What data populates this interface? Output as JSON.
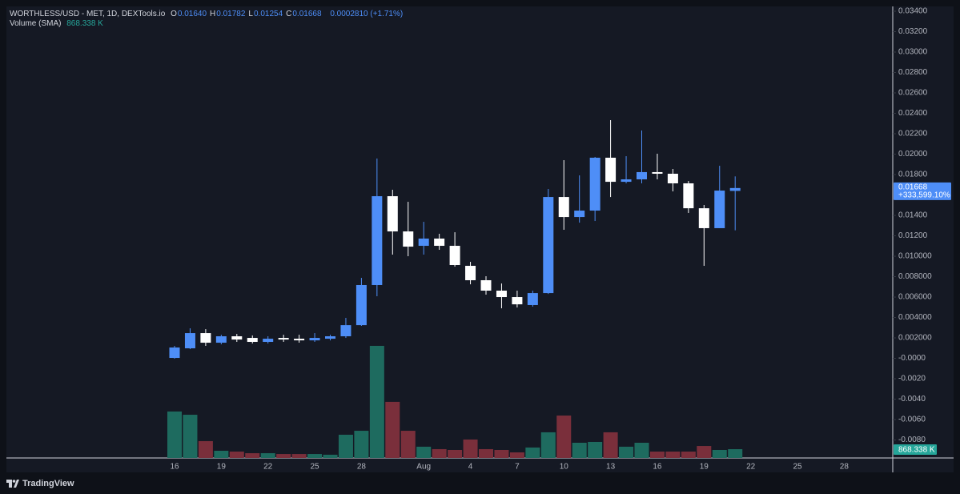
{
  "chart_data": {
    "type": "candlestick",
    "header": {
      "title": "WORTHLESS/USD - MET, 1D, DEXTools.io",
      "legend": [
        {
          "label": "O",
          "value": "0.01640"
        },
        {
          "label": "H",
          "value": "0.01782"
        },
        {
          "label": "L",
          "value": "0.01254"
        },
        {
          "label": "C",
          "value": "0.01668"
        }
      ],
      "change": "0.0002810 (+1.71%)",
      "volume_title": "Volume (SMA)",
      "volume_value": "868.338 K",
      "price_change": "+333,599.10%",
      "brand": "TradingView"
    },
    "categories": [
      "16",
      null,
      null,
      "19",
      null,
      null,
      "22",
      null,
      null,
      "25",
      null,
      null,
      "28",
      null,
      null,
      null,
      "Aug",
      null,
      null,
      "4",
      null,
      null,
      "7",
      null,
      null,
      "10",
      null,
      null,
      "13",
      null,
      null,
      "16",
      null,
      null,
      "19",
      null,
      null,
      "22",
      null,
      null,
      "25",
      null,
      null,
      "28"
    ],
    "open": [
      4e-05,
      0.00098,
      0.00247,
      0.00153,
      0.00216,
      0.002,
      0.00161,
      0.002,
      0.00192,
      0.00176,
      0.00192,
      0.00216,
      0.00325,
      0.00718,
      0.01588,
      0.01243,
      0.01102,
      0.01173,
      0.01102,
      0.00906,
      0.00765,
      0.00663,
      0.006,
      0.00522,
      0.00639,
      0.0158,
      0.01384,
      0.01447,
      0.01965,
      0.01729,
      0.01753,
      0.01824,
      0.01808,
      0.01714,
      0.0147,
      0.01275,
      0.0164,
      null,
      null,
      null,
      null,
      null,
      null,
      null
    ],
    "high": [
      0.00122,
      0.00294,
      0.00286,
      0.00231,
      0.00239,
      0.00224,
      0.00216,
      0.00231,
      0.00231,
      0.00247,
      0.00231,
      0.00396,
      0.00788,
      0.01957,
      0.01651,
      0.01533,
      0.01337,
      0.0122,
      0.01235,
      0.00945,
      0.00804,
      0.00733,
      0.00663,
      0.00663,
      0.01659,
      0.01941,
      0.01792,
      0.01973,
      0.02333,
      0.0198,
      0.02231,
      0.02004,
      0.01855,
      0.01737,
      0.01502,
      0.01886,
      0.01782,
      null,
      null,
      null,
      null,
      null,
      null,
      null
    ],
    "low": [
      -4e-05,
      0.0009,
      0.00122,
      0.00137,
      0.00161,
      0.00145,
      0.00145,
      0.00161,
      0.00153,
      0.00161,
      0.00176,
      0.002,
      0.00318,
      0.00608,
      0.01016,
      0.01,
      0.01016,
      0.01063,
      0.00898,
      0.00725,
      0.00624,
      0.0049,
      0.00498,
      0.00506,
      0.00631,
      0.01259,
      0.01329,
      0.01345,
      0.0158,
      0.01714,
      0.01714,
      0.01753,
      0.01635,
      0.01424,
      0.00906,
      0.01275,
      0.01254,
      null,
      null,
      null,
      null,
      null,
      null,
      null
    ],
    "close": [
      0.00106,
      0.00247,
      0.00153,
      0.00216,
      0.00184,
      0.00161,
      0.00192,
      0.00184,
      0.00176,
      0.002,
      0.00216,
      0.00325,
      0.00718,
      0.01588,
      0.01243,
      0.01094,
      0.01173,
      0.01102,
      0.00914,
      0.00765,
      0.00663,
      0.006,
      0.00529,
      0.00639,
      0.0158,
      0.01384,
      0.01447,
      0.01965,
      0.01729,
      0.01753,
      0.01824,
      0.01808,
      0.01714,
      0.0147,
      0.01275,
      0.01643,
      0.01668,
      null,
      null,
      null,
      null,
      null,
      null,
      null
    ],
    "volume": [
      4580000,
      4260000,
      1660000,
      710000,
      630000,
      470000,
      470000,
      390000,
      390000,
      390000,
      320000,
      2290000,
      2680000,
      11050000,
      5530000,
      2680000,
      1110000,
      870000,
      790000,
      1820000,
      870000,
      790000,
      550000,
      1030000,
      2530000,
      4180000,
      1500000,
      1580000,
      2530000,
      1110000,
      1500000,
      630000,
      630000,
      630000,
      1180000,
      790000,
      868338,
      null,
      null,
      null,
      null,
      null,
      null,
      null
    ],
    "up_color": "#4e8ef7",
    "down_color": "#ffffff",
    "volume_up_color": "#1e6b5f",
    "volume_down_color": "#7a2f3b",
    "ylim": [
      -0.00976,
      0.03447
    ],
    "volume_ylim": [
      0,
      44500000
    ],
    "yticks": [
      {
        "value": 0.034,
        "label": "0.03400"
      },
      {
        "value": 0.032,
        "label": "0.03200"
      },
      {
        "value": 0.03,
        "label": "0.03000"
      },
      {
        "value": 0.028,
        "label": "0.02800"
      },
      {
        "value": 0.026,
        "label": "0.02600"
      },
      {
        "value": 0.024,
        "label": "0.02400"
      },
      {
        "value": 0.022,
        "label": "0.02200"
      },
      {
        "value": 0.02,
        "label": "0.02000"
      },
      {
        "value": 0.018,
        "label": "0.01800"
      },
      {
        "value": 0.014,
        "label": "0.01400"
      },
      {
        "value": 0.012,
        "label": "0.01200"
      },
      {
        "value": 0.01,
        "label": "0.010000"
      },
      {
        "value": 0.008,
        "label": "0.008000"
      },
      {
        "value": 0.006,
        "label": "0.006000"
      },
      {
        "value": 0.004,
        "label": "0.004000"
      },
      {
        "value": 0.002,
        "label": "0.002000"
      },
      {
        "value": 0,
        "label": "-0.0000"
      },
      {
        "value": -0.002,
        "label": "-0.0020"
      },
      {
        "value": -0.004,
        "label": "-0.0040"
      },
      {
        "value": -0.006,
        "label": "-0.0060"
      },
      {
        "value": -0.008,
        "label": "-0.0080"
      }
    ],
    "grid": false
  }
}
